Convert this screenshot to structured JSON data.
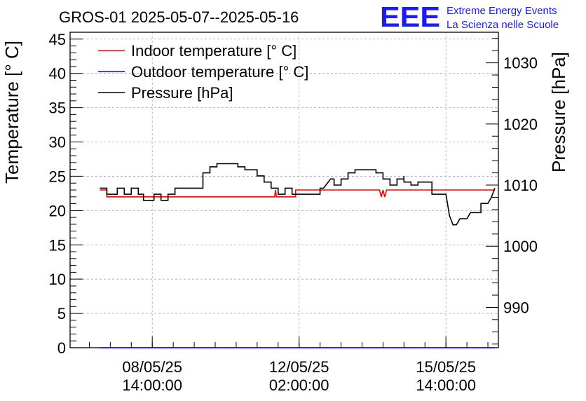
{
  "title": "GROS-01 2025-05-07--2025-05-16",
  "logo": {
    "mark": "EEE",
    "line1": "Extreme Energy Events",
    "line2": "La Scienza nelle Scuole",
    "color": "#1a1aff"
  },
  "chart_data": {
    "type": "line",
    "title": "GROS-01 2025-05-07--2025-05-16",
    "xlabel": "",
    "ylabel": "Temperature [° C]",
    "y2label": "Pressure [hPa]",
    "ylim": [
      0,
      46
    ],
    "y2lim": [
      983.4,
      1035
    ],
    "xlim": [
      "2025-05-06 15:00",
      "2025-05-16 20:00"
    ],
    "grid": true,
    "legend_position": "top-left",
    "yticks": [
      0,
      5,
      10,
      15,
      20,
      25,
      30,
      35,
      40,
      45
    ],
    "y2ticks": [
      990,
      1000,
      1010,
      1020,
      1030
    ],
    "xticks": [
      {
        "x": "2025-05-08 14:00",
        "line1": "08/05/25",
        "line2": "14:00:00"
      },
      {
        "x": "2025-05-12 02:00",
        "line1": "12/05/25",
        "line2": "02:00:00"
      },
      {
        "x": "2025-05-15 14:00",
        "line1": "15/05/25",
        "line2": "14:00:00"
      }
    ],
    "series": [
      {
        "name": "Indoor temperature [° C]",
        "axis": "left",
        "color": "#ff0000",
        "points": [
          [
            "2025-05-07 08:00",
            23
          ],
          [
            "2025-05-07 12:00",
            23
          ],
          [
            "2025-05-07 12:00",
            22
          ],
          [
            "2025-05-11 12:00",
            22
          ],
          [
            "2025-05-11 12:30",
            23
          ],
          [
            "2025-05-11 13:00",
            22
          ],
          [
            "2025-05-12 00:00",
            22
          ],
          [
            "2025-05-12 00:00",
            23
          ],
          [
            "2025-05-14 00:00",
            23
          ],
          [
            "2025-05-14 01:00",
            22
          ],
          [
            "2025-05-14 02:00",
            23
          ],
          [
            "2025-05-14 03:00",
            22
          ],
          [
            "2025-05-14 04:00",
            23
          ],
          [
            "2025-05-16 18:00",
            23
          ]
        ]
      },
      {
        "name": "Outdoor temperature [° C]",
        "axis": "left",
        "color": "#0000ff",
        "points": [
          [
            "2025-05-07 08:00",
            0
          ],
          [
            "2025-05-16 18:00",
            0
          ]
        ]
      },
      {
        "name": "Pressure [hPa]",
        "axis": "right",
        "color": "#000000",
        "points": [
          [
            "2025-05-07 08:00",
            1009.5
          ],
          [
            "2025-05-07 12:00",
            1009.5
          ],
          [
            "2025-05-07 12:00",
            1008.5
          ],
          [
            "2025-05-07 18:00",
            1008.5
          ],
          [
            "2025-05-07 18:00",
            1009.5
          ],
          [
            "2025-05-07 22:00",
            1009.5
          ],
          [
            "2025-05-07 22:00",
            1008.5
          ],
          [
            "2025-05-08 02:00",
            1008.5
          ],
          [
            "2025-05-08 02:00",
            1009.5
          ],
          [
            "2025-05-08 06:00",
            1009.5
          ],
          [
            "2025-05-08 06:00",
            1008.5
          ],
          [
            "2025-05-08 09:00",
            1008.5
          ],
          [
            "2025-05-08 09:00",
            1007.5
          ],
          [
            "2025-05-08 15:00",
            1007.5
          ],
          [
            "2025-05-08 15:00",
            1008.5
          ],
          [
            "2025-05-08 19:00",
            1008.5
          ],
          [
            "2025-05-08 19:00",
            1007.5
          ],
          [
            "2025-05-08 23:00",
            1007.5
          ],
          [
            "2025-05-08 23:00",
            1008.5
          ],
          [
            "2025-05-09 03:00",
            1008.5
          ],
          [
            "2025-05-09 03:00",
            1009.5
          ],
          [
            "2025-05-09 19:00",
            1009.5
          ],
          [
            "2025-05-09 19:00",
            1012
          ],
          [
            "2025-05-09 23:00",
            1012
          ],
          [
            "2025-05-09 23:00",
            1013
          ],
          [
            "2025-05-10 03:00",
            1013
          ],
          [
            "2025-05-10 03:00",
            1013.5
          ],
          [
            "2025-05-10 15:00",
            1013.5
          ],
          [
            "2025-05-10 15:00",
            1013
          ],
          [
            "2025-05-10 19:00",
            1013
          ],
          [
            "2025-05-10 19:00",
            1012.5
          ],
          [
            "2025-05-11 02:00",
            1012.5
          ],
          [
            "2025-05-11 02:00",
            1011.5
          ],
          [
            "2025-05-11 06:00",
            1011.5
          ],
          [
            "2025-05-11 06:00",
            1010.5
          ],
          [
            "2025-05-11 10:00",
            1010.5
          ],
          [
            "2025-05-11 10:00",
            1009.5
          ],
          [
            "2025-05-11 14:00",
            1009.5
          ],
          [
            "2025-05-11 14:00",
            1008.5
          ],
          [
            "2025-05-11 18:00",
            1008.5
          ],
          [
            "2025-05-11 18:00",
            1009.5
          ],
          [
            "2025-05-11 22:00",
            1009.5
          ],
          [
            "2025-05-11 22:00",
            1008.5
          ],
          [
            "2025-05-12 14:00",
            1008.5
          ],
          [
            "2025-05-12 14:00",
            1009.5
          ],
          [
            "2025-05-12 16:00",
            1009.5
          ],
          [
            "2025-05-12 20:00",
            1011
          ],
          [
            "2025-05-12 22:00",
            1011
          ],
          [
            "2025-05-12 22:00",
            1010
          ],
          [
            "2025-05-13 02:00",
            1010
          ],
          [
            "2025-05-13 02:00",
            1011
          ],
          [
            "2025-05-13 06:00",
            1011
          ],
          [
            "2025-05-13 06:00",
            1012
          ],
          [
            "2025-05-13 10:00",
            1012
          ],
          [
            "2025-05-13 10:00",
            1012.5
          ],
          [
            "2025-05-13 22:00",
            1012.5
          ],
          [
            "2025-05-13 22:00",
            1012
          ],
          [
            "2025-05-14 02:00",
            1012
          ],
          [
            "2025-05-14 02:00",
            1011
          ],
          [
            "2025-05-14 06:00",
            1011
          ],
          [
            "2025-05-14 06:00",
            1010
          ],
          [
            "2025-05-14 10:00",
            1010
          ],
          [
            "2025-05-14 10:00",
            1011
          ],
          [
            "2025-05-14 14:00",
            1011
          ],
          [
            "2025-05-14 14:00",
            1011.5
          ],
          [
            "2025-05-14 14:00",
            1010.5
          ],
          [
            "2025-05-14 18:00",
            1010.5
          ],
          [
            "2025-05-14 18:00",
            1010
          ],
          [
            "2025-05-14 22:00",
            1010
          ],
          [
            "2025-05-14 22:00",
            1010.5
          ],
          [
            "2025-05-15 06:00",
            1010.5
          ],
          [
            "2025-05-15 06:00",
            1008.5
          ],
          [
            "2025-05-15 14:00",
            1008.5
          ],
          [
            "2025-05-15 16:00",
            1005
          ],
          [
            "2025-05-15 18:00",
            1003.5
          ],
          [
            "2025-05-15 20:00",
            1003.5
          ],
          [
            "2025-05-15 22:00",
            1004.5
          ],
          [
            "2025-05-16 02:00",
            1004.5
          ],
          [
            "2025-05-16 04:00",
            1005.5
          ],
          [
            "2025-05-16 10:00",
            1005.5
          ],
          [
            "2025-05-16 10:00",
            1007
          ],
          [
            "2025-05-16 14:00",
            1007
          ],
          [
            "2025-05-16 16:00",
            1008
          ],
          [
            "2025-05-16 18:00",
            1009.5
          ]
        ]
      }
    ]
  }
}
